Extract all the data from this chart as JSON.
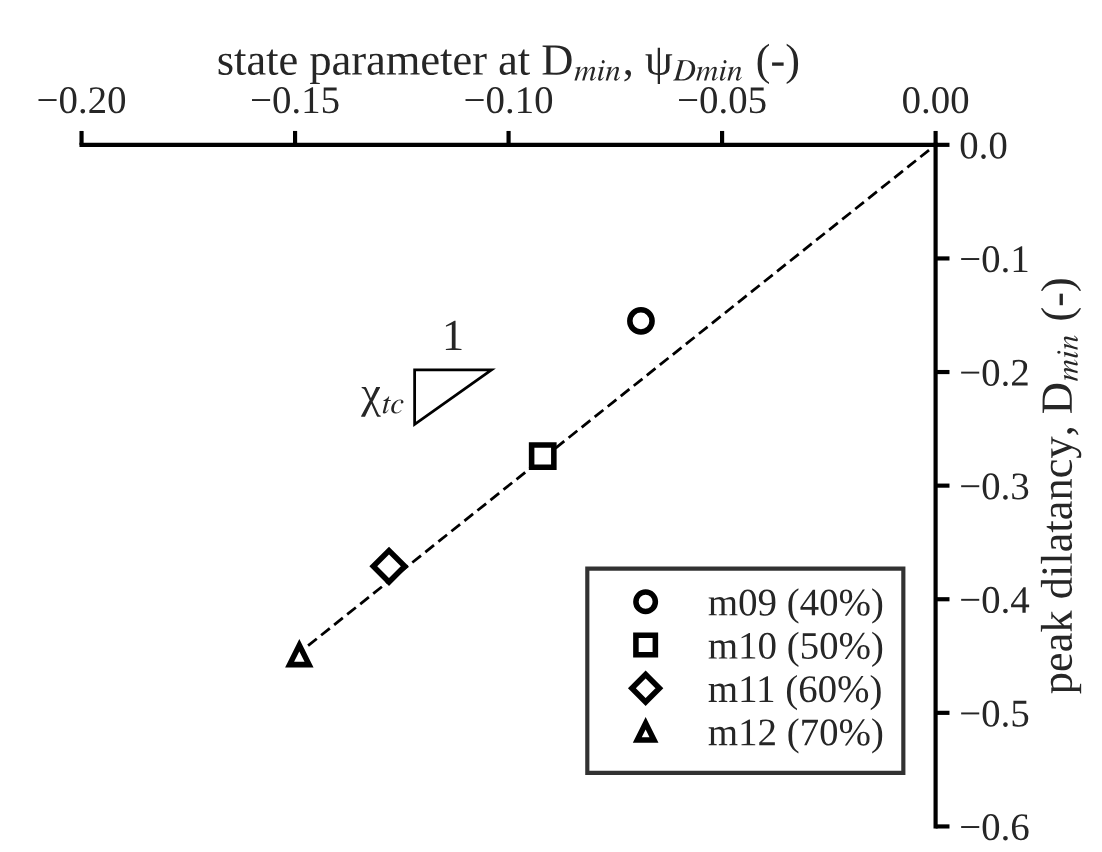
{
  "chart_data": {
    "type": "scatter",
    "xlabel": "state parameter at D$_{min}$, ψ$_{Dmin}$ (-)",
    "ylabel": "peak dilatancy, D$_{min}$ (-)",
    "xlim": [
      -0.2,
      0.0
    ],
    "ylim": [
      -0.6,
      0.0
    ],
    "xticks": [
      {
        "value": -0.2,
        "label": "−0.20"
      },
      {
        "value": -0.15,
        "label": "−0.15"
      },
      {
        "value": -0.1,
        "label": "−0.10"
      },
      {
        "value": -0.05,
        "label": "−0.05"
      },
      {
        "value": 0.0,
        "label": "0.00"
      }
    ],
    "yticks": [
      {
        "value": -0.6,
        "label": "−0.6"
      },
      {
        "value": -0.5,
        "label": "−0.5"
      },
      {
        "value": -0.4,
        "label": "−0.4"
      },
      {
        "value": -0.3,
        "label": "−0.3"
      },
      {
        "value": -0.2,
        "label": "−0.2"
      },
      {
        "value": -0.1,
        "label": "−0.1"
      },
      {
        "value": 0.0,
        "label": "0.0"
      }
    ],
    "series": [
      {
        "type": "line",
        "color": "#000000",
        "x": [
          -0.15,
          0.0
        ],
        "values": [
          -0.45,
          0.0
        ],
        "line_style": "dashed",
        "marker": "none"
      },
      {
        "name": "m09 (40%)",
        "color": "#000000",
        "x": [
          -0.069
        ],
        "values": [
          -0.155
        ],
        "marker": "circle"
      },
      {
        "name": "m10 (50%)",
        "color": "#000000",
        "x": [
          -0.092
        ],
        "values": [
          -0.274
        ],
        "marker": "square"
      },
      {
        "name": "m11 (60%)",
        "color": "#000000",
        "x": [
          -0.128
        ],
        "values": [
          -0.371
        ],
        "marker": "diamond"
      },
      {
        "name": "m12 (70%)",
        "color": "#000000",
        "x": [
          -0.149
        ],
        "values": [
          -0.449
        ],
        "marker": "triangle"
      }
    ],
    "annotations": [
      "1",
      "χ$_{tc}$"
    ],
    "legend": "bottom right",
    "grid": false
  }
}
